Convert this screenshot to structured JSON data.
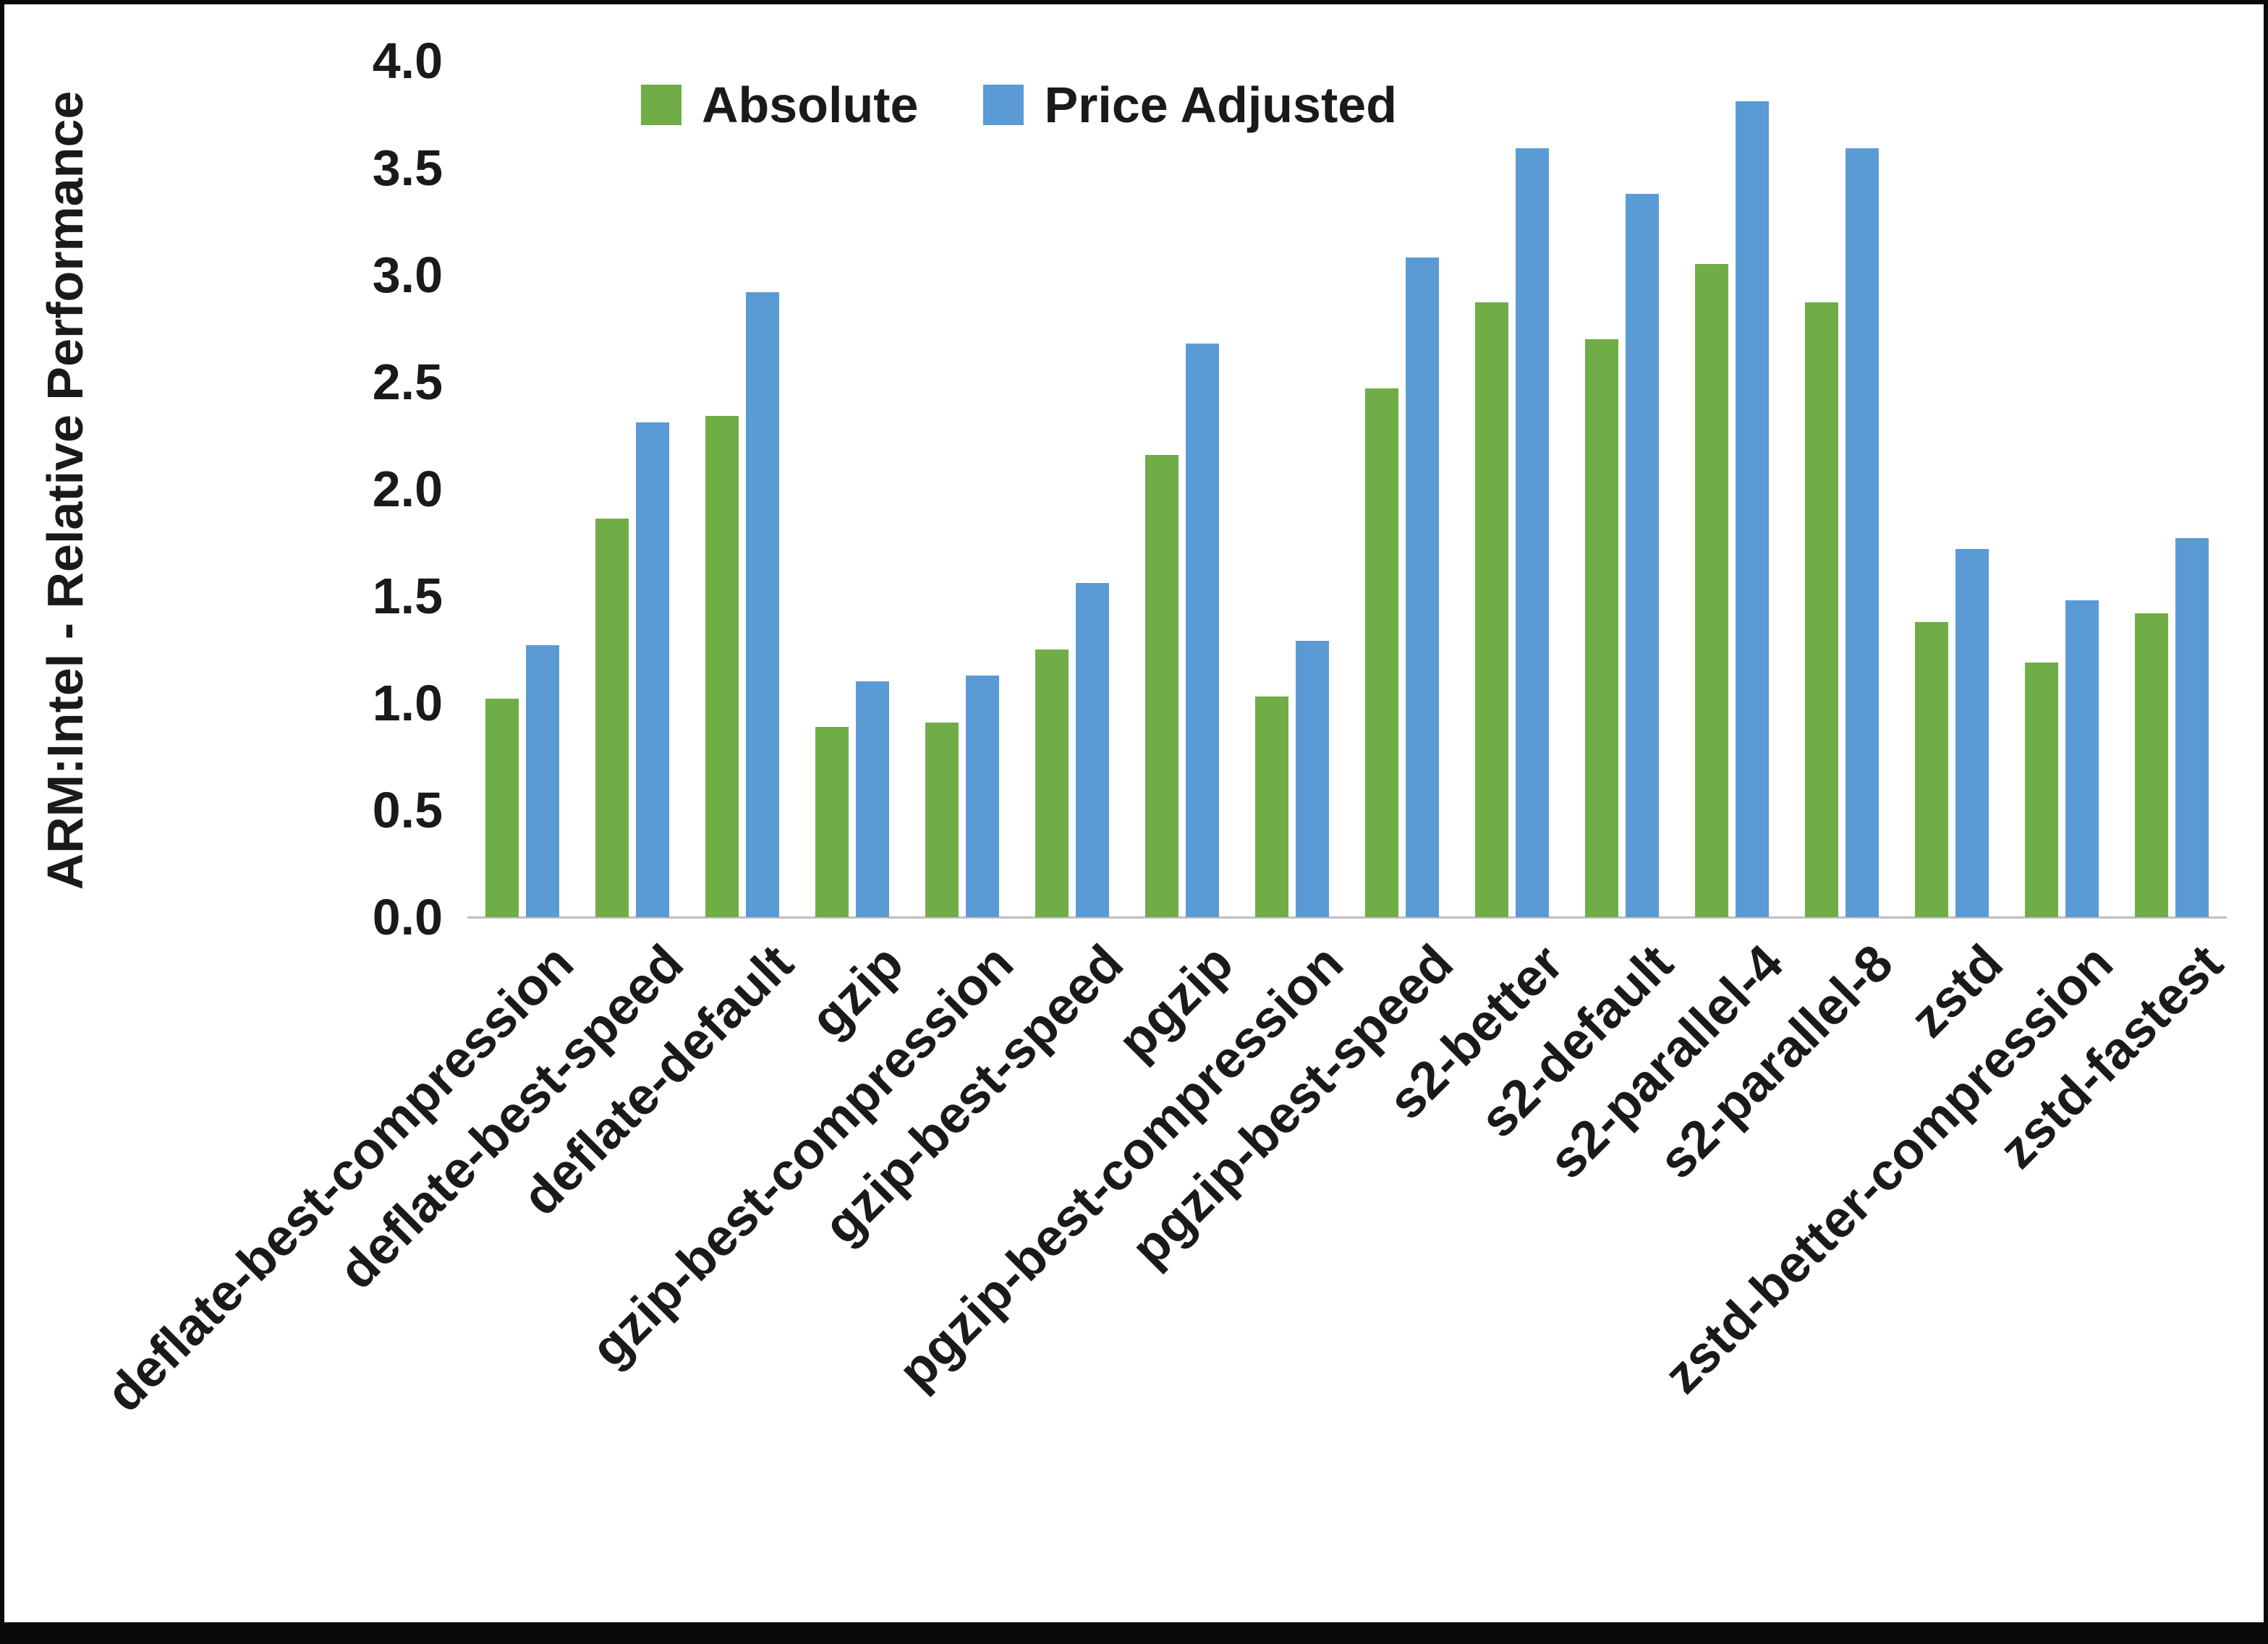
{
  "chart_data": {
    "type": "bar",
    "title": "",
    "xlabel": "",
    "ylabel": "ARM:Intel - Relative Performance",
    "ylim": [
      0,
      4.0
    ],
    "ytick_step": 0.5,
    "grid": false,
    "legend_position": "top",
    "background_color": "#ffffff",
    "axis_line_color": "#bfbfbf",
    "categories": [
      "deflate-best-compression",
      "deflate-best-speed",
      "deflate-default",
      "gzip",
      "gzip-best-compression",
      "gzip-best-speed",
      "pgzip",
      "pgzip-best-compression",
      "pgzip-best-speed",
      "s2-better",
      "s2-default",
      "s2-parallel-4",
      "s2-parallel-8",
      "zstd",
      "zstd-better-compression",
      "zstd-fastest"
    ],
    "series": [
      {
        "name": "Absolute",
        "color": "#70AD47",
        "values": [
          1.02,
          1.86,
          2.34,
          0.89,
          0.91,
          1.25,
          2.16,
          1.03,
          2.47,
          2.87,
          2.7,
          3.05,
          2.87,
          1.38,
          1.19,
          1.42
        ]
      },
      {
        "name": "Price Adjusted",
        "color": "#5B9BD5",
        "values": [
          1.27,
          2.31,
          2.92,
          1.1,
          1.13,
          1.56,
          2.68,
          1.29,
          3.08,
          3.59,
          3.38,
          3.81,
          3.59,
          1.72,
          1.48,
          1.77
        ]
      }
    ]
  }
}
